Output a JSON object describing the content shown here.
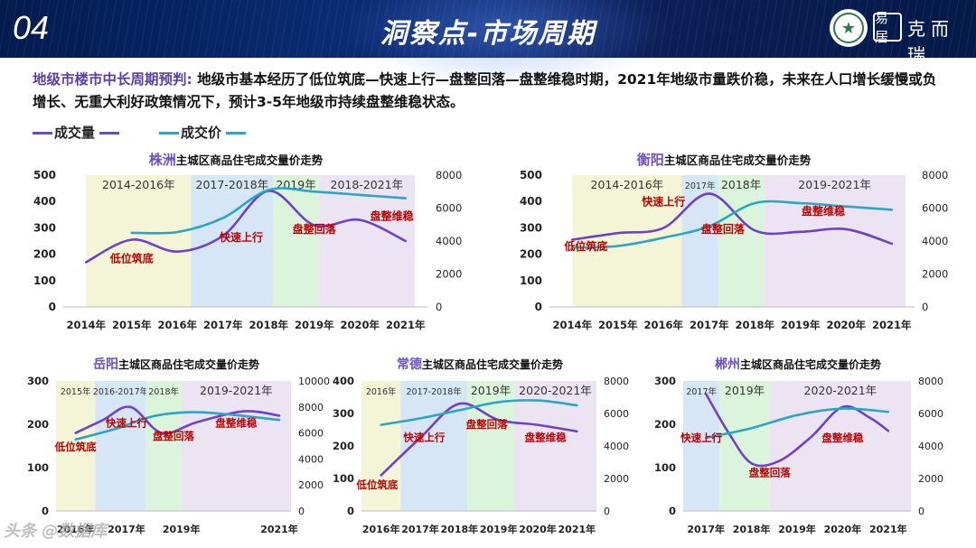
{
  "header": {
    "section_number": "04",
    "title": "洞察点-市场周期",
    "logo_text": "克而瑞",
    "logo_seal_text": "易居",
    "logo_badge_icon": "star-emblem-icon"
  },
  "intro": {
    "lead": "地级市楼市中长周期预判:",
    "body": "地级市基本经历了低位筑底—快速上行—盘整回落—盘整维稳时期，2021年地级市量跌价稳，未来在人口增长缓慢或负增长、无重大利好政策情况下，预计3-5年地级市持续盘整维稳状态。"
  },
  "legend": {
    "volume_label": "成交量",
    "price_label": "成交价",
    "volume_color": "#6a4bc4",
    "price_color": "#2aa6c8"
  },
  "colors": {
    "volume": "#7040c8",
    "price": "#2ba5c5",
    "phase_bottom": "#f3f5d6",
    "phase_up": "#d6e6f6",
    "phase_down": "#dbf5dc",
    "phase_stable": "#ece4f2",
    "annotation": "#c00000",
    "city": "#6d4fc6",
    "header_bg": "#0a2c73"
  },
  "chart_data": [
    {
      "type": "line",
      "city": "株洲",
      "title": "主城区商品住宅成交量价走势",
      "categories": [
        "2014年",
        "2015年",
        "2016年",
        "2017年",
        "2018年",
        "2019年",
        "2020年",
        "2021年"
      ],
      "ylim_left": [
        0,
        500
      ],
      "yticks_left": [
        "0",
        "100",
        "200",
        "300",
        "400",
        "500"
      ],
      "ylim_right": [
        0,
        8000
      ],
      "yticks_right": [
        "0",
        "2000",
        "4000",
        "6000",
        "8000"
      ],
      "phases": [
        {
          "label": "2014-2016年",
          "from": 0,
          "to": 2.3,
          "kind": "bottom"
        },
        {
          "label": "2017-2018年",
          "from": 2.3,
          "to": 4.1,
          "kind": "up"
        },
        {
          "label": "2019年",
          "from": 4.1,
          "to": 5.1,
          "kind": "down"
        },
        {
          "label": "2018-2021年",
          "from": 5.1,
          "to": 7.2,
          "kind": "stable"
        }
      ],
      "series": [
        {
          "name": "成交量",
          "axis": "left",
          "x": [
            0,
            1,
            2,
            3,
            4,
            5,
            6,
            7
          ],
          "values": [
            170,
            255,
            210,
            270,
            440,
            310,
            330,
            250
          ]
        },
        {
          "name": "成交价",
          "axis": "right",
          "x": [
            1,
            2,
            3,
            4,
            5,
            6,
            7
          ],
          "values": [
            4500,
            4550,
            5400,
            7100,
            7000,
            6800,
            6600
          ]
        }
      ],
      "annotations": [
        {
          "text": "低位筑底",
          "x": 1.0,
          "y": 170
        },
        {
          "text": "快速上行",
          "x": 3.4,
          "y": 250
        },
        {
          "text": "盘整回落",
          "x": 5.0,
          "y": 280
        },
        {
          "text": "盘整维稳",
          "x": 6.7,
          "y": 330
        }
      ]
    },
    {
      "type": "line",
      "city": "衡阳",
      "title": "主城区商品住宅成交量价走势",
      "categories": [
        "2014年",
        "2015年",
        "2016年",
        "2017年",
        "2018年",
        "2019年",
        "2020年",
        "2021年"
      ],
      "ylim_left": [
        0,
        500
      ],
      "yticks_left": [
        "0",
        "100",
        "200",
        "300",
        "400",
        "500"
      ],
      "ylim_right": [
        0,
        8000
      ],
      "yticks_right": [
        "0",
        "2000",
        "4000",
        "6000",
        "8000"
      ],
      "phases": [
        {
          "label": "2014-2016年",
          "from": 0,
          "to": 2.4,
          "kind": "bottom"
        },
        {
          "label": "2017年",
          "from": 2.4,
          "to": 3.2,
          "kind": "up"
        },
        {
          "label": "2018年",
          "from": 3.2,
          "to": 4.2,
          "kind": "down"
        },
        {
          "label": "2019-2021年",
          "from": 4.2,
          "to": 7.3,
          "kind": "stable"
        }
      ],
      "series": [
        {
          "name": "成交量",
          "axis": "left",
          "x": [
            0,
            1,
            2,
            3,
            4,
            5,
            6,
            7
          ],
          "values": [
            255,
            280,
            300,
            430,
            290,
            285,
            295,
            240
          ]
        },
        {
          "name": "成交价",
          "axis": "right",
          "x": [
            0,
            1,
            2,
            3,
            4,
            5,
            6,
            7
          ],
          "values": [
            3600,
            3700,
            4200,
            4900,
            6300,
            6300,
            6100,
            5900
          ]
        }
      ],
      "annotations": [
        {
          "text": "快速上行",
          "x": 2.0,
          "y": 385
        },
        {
          "text": "盘整回落",
          "x": 3.3,
          "y": 280
        },
        {
          "text": "盘整维稳",
          "x": 5.5,
          "y": 350
        },
        {
          "text": "低位筑底",
          "x": 0.3,
          "y": 215
        }
      ]
    },
    {
      "type": "line",
      "city": "岳阳",
      "title": "主城区商品住宅成交量价走势",
      "categories": [
        "2016年",
        "2017年",
        "2019年",
        "2021年"
      ],
      "category_x": [
        0.5,
        1.8,
        3.2,
        5.7
      ],
      "x_range": [
        0,
        6
      ],
      "ylim_left": [
        0,
        300
      ],
      "yticks_left": [
        "0",
        "100",
        "200",
        "300"
      ],
      "ylim_right": [
        0,
        10000
      ],
      "yticks_right": [
        "0",
        "2000",
        "4000",
        "6000",
        "8000",
        "10000"
      ],
      "phases": [
        {
          "label": "2015年",
          "from": 0,
          "to": 1.0,
          "kind": "bottom"
        },
        {
          "label": "2016-2017年",
          "from": 1.0,
          "to": 2.3,
          "kind": "up"
        },
        {
          "label": "2018年",
          "from": 2.3,
          "to": 3.2,
          "kind": "down"
        },
        {
          "label": "2019-2021年",
          "from": 3.2,
          "to": 6.0,
          "kind": "stable"
        }
      ],
      "series": [
        {
          "name": "成交量",
          "axis": "left",
          "x": [
            0.5,
            1.2,
            1.9,
            2.7,
            3.6,
            4.8,
            5.7
          ],
          "values": [
            180,
            210,
            240,
            180,
            205,
            230,
            220
          ]
        },
        {
          "name": "成交价",
          "axis": "right",
          "x": [
            0.5,
            1.5,
            2.5,
            3.5,
            4.5,
            5.7
          ],
          "values": [
            5500,
            6300,
            7300,
            7600,
            7400,
            7000
          ]
        }
      ],
      "annotations": [
        {
          "text": "低位筑底",
          "x": 0.5,
          "y": 140
        },
        {
          "text": "快速上行",
          "x": 1.8,
          "y": 195
        },
        {
          "text": "盘整回落",
          "x": 3.0,
          "y": 165
        },
        {
          "text": "盘整维稳",
          "x": 4.6,
          "y": 195
        }
      ]
    },
    {
      "type": "line",
      "city": "常德",
      "title": "主城区商品住宅成交量价走势",
      "categories": [
        "2016年",
        "2017年",
        "2018年",
        "2019年",
        "2020年",
        "2021年"
      ],
      "ylim_left": [
        0,
        400
      ],
      "yticks_left": [
        "0",
        "100",
        "200",
        "300",
        "400"
      ],
      "ylim_right": [
        0,
        8000
      ],
      "yticks_right": [
        "0",
        "2000",
        "4000",
        "6000",
        "8000"
      ],
      "phases": [
        {
          "label": "2016年",
          "from": -0.5,
          "to": 0.5,
          "kind": "bottom"
        },
        {
          "label": "2017-2018年",
          "from": 0.5,
          "to": 2.2,
          "kind": "up"
        },
        {
          "label": "2019年",
          "from": 2.2,
          "to": 3.4,
          "kind": "down"
        },
        {
          "label": "2020-2021年",
          "from": 3.4,
          "to": 5.5,
          "kind": "stable"
        }
      ],
      "series": [
        {
          "name": "成交量",
          "axis": "left",
          "x": [
            0,
            1,
            2,
            3,
            4,
            5
          ],
          "values": [
            110,
            225,
            330,
            280,
            265,
            245
          ]
        },
        {
          "name": "成交价",
          "axis": "right",
          "x": [
            0,
            1,
            2,
            3,
            4,
            5
          ],
          "values": [
            5300,
            5700,
            6200,
            6700,
            6800,
            6500
          ]
        }
      ],
      "annotations": [
        {
          "text": "低位筑底",
          "x": -0.1,
          "y": 70
        },
        {
          "text": "快速上行",
          "x": 1.1,
          "y": 215
        },
        {
          "text": "盘整回落",
          "x": 2.7,
          "y": 255
        },
        {
          "text": "盘整维稳",
          "x": 4.2,
          "y": 215
        }
      ]
    },
    {
      "type": "line",
      "city": "郴州",
      "title": "主城区商品住宅成交量价走势",
      "categories": [
        "2017年",
        "2018年",
        "2019年",
        "2020年",
        "2021年"
      ],
      "ylim_left": [
        0,
        300
      ],
      "yticks_left": [
        "0",
        "100",
        "200",
        "300"
      ],
      "ylim_right": [
        0,
        8000
      ],
      "yticks_right": [
        "0",
        "2000",
        "4000",
        "6000",
        "8000"
      ],
      "phases": [
        {
          "label": "2017年",
          "from": -0.5,
          "to": 0.3,
          "kind": "up"
        },
        {
          "label": "2019年",
          "from": 0.3,
          "to": 1.4,
          "kind": "down"
        },
        {
          "label": "2020-2021年",
          "from": 1.4,
          "to": 4.5,
          "kind": "stable"
        }
      ],
      "series": [
        {
          "name": "成交量",
          "axis": "left",
          "x": [
            0,
            0.5,
            1,
            1.6,
            2.3,
            3,
            3.6,
            4
          ],
          "values": [
            270,
            180,
            110,
            115,
            170,
            240,
            215,
            185
          ]
        },
        {
          "name": "成交价",
          "axis": "right",
          "x": [
            0,
            1,
            2,
            3,
            4
          ],
          "values": [
            4500,
            5100,
            5900,
            6300,
            6100
          ]
        }
      ],
      "annotations": [
        {
          "text": "快速上行",
          "x": -0.1,
          "y": 160
        },
        {
          "text": "盘整回落",
          "x": 1.4,
          "y": 80
        },
        {
          "text": "盘整维稳",
          "x": 3.0,
          "y": 160
        }
      ]
    }
  ],
  "watermark": "头条 @数据库"
}
